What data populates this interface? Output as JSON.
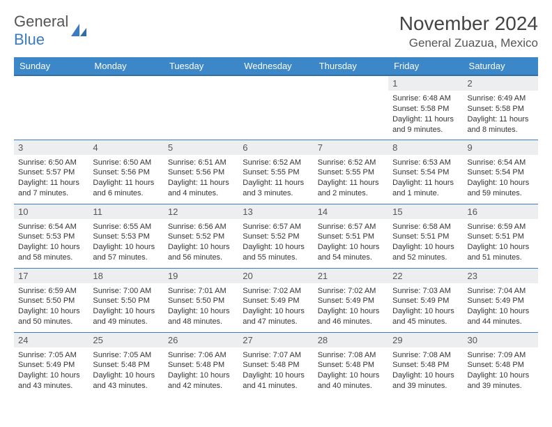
{
  "logo": {
    "word1": "General",
    "word2": "Blue"
  },
  "title": "November 2024",
  "location": "General Zuazua, Mexico",
  "colors": {
    "header_bg": "#3b87c8",
    "header_text": "#ffffff",
    "daynum_bg": "#eceef0",
    "border": "#3b7bbf",
    "logo_gray": "#555555",
    "logo_blue": "#3b7bbf"
  },
  "fonts": {
    "title_size": 28,
    "location_size": 17,
    "dow_size": 13,
    "daynum_size": 13,
    "body_size": 11
  },
  "days_of_week": [
    "Sunday",
    "Monday",
    "Tuesday",
    "Wednesday",
    "Thursday",
    "Friday",
    "Saturday"
  ],
  "weeks": [
    [
      {
        "n": "",
        "sr": "",
        "ss": "",
        "dl": ""
      },
      {
        "n": "",
        "sr": "",
        "ss": "",
        "dl": ""
      },
      {
        "n": "",
        "sr": "",
        "ss": "",
        "dl": ""
      },
      {
        "n": "",
        "sr": "",
        "ss": "",
        "dl": ""
      },
      {
        "n": "",
        "sr": "",
        "ss": "",
        "dl": ""
      },
      {
        "n": "1",
        "sr": "Sunrise: 6:48 AM",
        "ss": "Sunset: 5:58 PM",
        "dl": "Daylight: 11 hours and 9 minutes."
      },
      {
        "n": "2",
        "sr": "Sunrise: 6:49 AM",
        "ss": "Sunset: 5:58 PM",
        "dl": "Daylight: 11 hours and 8 minutes."
      }
    ],
    [
      {
        "n": "3",
        "sr": "Sunrise: 6:50 AM",
        "ss": "Sunset: 5:57 PM",
        "dl": "Daylight: 11 hours and 7 minutes."
      },
      {
        "n": "4",
        "sr": "Sunrise: 6:50 AM",
        "ss": "Sunset: 5:56 PM",
        "dl": "Daylight: 11 hours and 6 minutes."
      },
      {
        "n": "5",
        "sr": "Sunrise: 6:51 AM",
        "ss": "Sunset: 5:56 PM",
        "dl": "Daylight: 11 hours and 4 minutes."
      },
      {
        "n": "6",
        "sr": "Sunrise: 6:52 AM",
        "ss": "Sunset: 5:55 PM",
        "dl": "Daylight: 11 hours and 3 minutes."
      },
      {
        "n": "7",
        "sr": "Sunrise: 6:52 AM",
        "ss": "Sunset: 5:55 PM",
        "dl": "Daylight: 11 hours and 2 minutes."
      },
      {
        "n": "8",
        "sr": "Sunrise: 6:53 AM",
        "ss": "Sunset: 5:54 PM",
        "dl": "Daylight: 11 hours and 1 minute."
      },
      {
        "n": "9",
        "sr": "Sunrise: 6:54 AM",
        "ss": "Sunset: 5:54 PM",
        "dl": "Daylight: 10 hours and 59 minutes."
      }
    ],
    [
      {
        "n": "10",
        "sr": "Sunrise: 6:54 AM",
        "ss": "Sunset: 5:53 PM",
        "dl": "Daylight: 10 hours and 58 minutes."
      },
      {
        "n": "11",
        "sr": "Sunrise: 6:55 AM",
        "ss": "Sunset: 5:53 PM",
        "dl": "Daylight: 10 hours and 57 minutes."
      },
      {
        "n": "12",
        "sr": "Sunrise: 6:56 AM",
        "ss": "Sunset: 5:52 PM",
        "dl": "Daylight: 10 hours and 56 minutes."
      },
      {
        "n": "13",
        "sr": "Sunrise: 6:57 AM",
        "ss": "Sunset: 5:52 PM",
        "dl": "Daylight: 10 hours and 55 minutes."
      },
      {
        "n": "14",
        "sr": "Sunrise: 6:57 AM",
        "ss": "Sunset: 5:51 PM",
        "dl": "Daylight: 10 hours and 54 minutes."
      },
      {
        "n": "15",
        "sr": "Sunrise: 6:58 AM",
        "ss": "Sunset: 5:51 PM",
        "dl": "Daylight: 10 hours and 52 minutes."
      },
      {
        "n": "16",
        "sr": "Sunrise: 6:59 AM",
        "ss": "Sunset: 5:51 PM",
        "dl": "Daylight: 10 hours and 51 minutes."
      }
    ],
    [
      {
        "n": "17",
        "sr": "Sunrise: 6:59 AM",
        "ss": "Sunset: 5:50 PM",
        "dl": "Daylight: 10 hours and 50 minutes."
      },
      {
        "n": "18",
        "sr": "Sunrise: 7:00 AM",
        "ss": "Sunset: 5:50 PM",
        "dl": "Daylight: 10 hours and 49 minutes."
      },
      {
        "n": "19",
        "sr": "Sunrise: 7:01 AM",
        "ss": "Sunset: 5:50 PM",
        "dl": "Daylight: 10 hours and 48 minutes."
      },
      {
        "n": "20",
        "sr": "Sunrise: 7:02 AM",
        "ss": "Sunset: 5:49 PM",
        "dl": "Daylight: 10 hours and 47 minutes."
      },
      {
        "n": "21",
        "sr": "Sunrise: 7:02 AM",
        "ss": "Sunset: 5:49 PM",
        "dl": "Daylight: 10 hours and 46 minutes."
      },
      {
        "n": "22",
        "sr": "Sunrise: 7:03 AM",
        "ss": "Sunset: 5:49 PM",
        "dl": "Daylight: 10 hours and 45 minutes."
      },
      {
        "n": "23",
        "sr": "Sunrise: 7:04 AM",
        "ss": "Sunset: 5:49 PM",
        "dl": "Daylight: 10 hours and 44 minutes."
      }
    ],
    [
      {
        "n": "24",
        "sr": "Sunrise: 7:05 AM",
        "ss": "Sunset: 5:49 PM",
        "dl": "Daylight: 10 hours and 43 minutes."
      },
      {
        "n": "25",
        "sr": "Sunrise: 7:05 AM",
        "ss": "Sunset: 5:48 PM",
        "dl": "Daylight: 10 hours and 43 minutes."
      },
      {
        "n": "26",
        "sr": "Sunrise: 7:06 AM",
        "ss": "Sunset: 5:48 PM",
        "dl": "Daylight: 10 hours and 42 minutes."
      },
      {
        "n": "27",
        "sr": "Sunrise: 7:07 AM",
        "ss": "Sunset: 5:48 PM",
        "dl": "Daylight: 10 hours and 41 minutes."
      },
      {
        "n": "28",
        "sr": "Sunrise: 7:08 AM",
        "ss": "Sunset: 5:48 PM",
        "dl": "Daylight: 10 hours and 40 minutes."
      },
      {
        "n": "29",
        "sr": "Sunrise: 7:08 AM",
        "ss": "Sunset: 5:48 PM",
        "dl": "Daylight: 10 hours and 39 minutes."
      },
      {
        "n": "30",
        "sr": "Sunrise: 7:09 AM",
        "ss": "Sunset: 5:48 PM",
        "dl": "Daylight: 10 hours and 39 minutes."
      }
    ]
  ]
}
